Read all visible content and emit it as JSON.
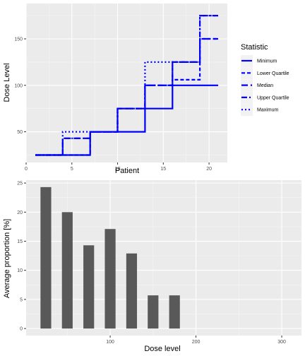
{
  "chart_data": [
    {
      "type": "line",
      "chart_style": "step",
      "xlabel": "Patient",
      "ylabel": "Dose Level",
      "xlim": [
        0,
        22
      ],
      "ylim": [
        17,
        188
      ],
      "x_ticks": [
        0,
        5,
        10,
        15,
        20
      ],
      "y_ticks": [
        50,
        100,
        150
      ],
      "grid": true,
      "line_color": "#0000ff",
      "legend": {
        "title": "Statistic",
        "position": "right"
      },
      "series": [
        {
          "name": "Minimum",
          "dash": "solid",
          "points": [
            [
              1,
              25
            ],
            [
              7,
              25
            ],
            [
              7,
              50
            ],
            [
              10,
              50
            ],
            [
              10,
              50
            ],
            [
              13,
              50
            ],
            [
              13,
              75
            ],
            [
              16,
              75
            ],
            [
              16,
              100
            ],
            [
              19,
              100
            ],
            [
              19,
              100
            ],
            [
              21,
              100
            ]
          ]
        },
        {
          "name": "Lower Quartile",
          "dash": "dashed",
          "points": [
            [
              1,
              25
            ],
            [
              7,
              25
            ],
            [
              7,
              50
            ],
            [
              10,
              50
            ],
            [
              10,
              75
            ],
            [
              13,
              75
            ],
            [
              13,
              100
            ],
            [
              16,
              100
            ],
            [
              16,
              106
            ],
            [
              19,
              106
            ],
            [
              19,
              150
            ],
            [
              21,
              150
            ]
          ]
        },
        {
          "name": "Median",
          "dash": "longdash",
          "points": [
            [
              1,
              25
            ],
            [
              4,
              25
            ],
            [
              4,
              43
            ],
            [
              7,
              43
            ],
            [
              7,
              50
            ],
            [
              10,
              50
            ],
            [
              10,
              75
            ],
            [
              13,
              75
            ],
            [
              13,
              100
            ],
            [
              16,
              100
            ],
            [
              16,
              125
            ],
            [
              19,
              125
            ],
            [
              19,
              150
            ],
            [
              21,
              150
            ]
          ]
        },
        {
          "name": "Upper Quartile",
          "dash": "dashdot",
          "points": [
            [
              1,
              25
            ],
            [
              4,
              25
            ],
            [
              4,
              43
            ],
            [
              7,
              43
            ],
            [
              7,
              50
            ],
            [
              10,
              50
            ],
            [
              10,
              75
            ],
            [
              13,
              75
            ],
            [
              13,
              100
            ],
            [
              16,
              100
            ],
            [
              16,
              125
            ],
            [
              19,
              125
            ],
            [
              19,
              175
            ],
            [
              21,
              175
            ]
          ]
        },
        {
          "name": "Maximum",
          "dash": "dotted",
          "points": [
            [
              1,
              25
            ],
            [
              4,
              25
            ],
            [
              4,
              50
            ],
            [
              7,
              50
            ],
            [
              7,
              50
            ],
            [
              10,
              50
            ],
            [
              10,
              75
            ],
            [
              13,
              75
            ],
            [
              13,
              125
            ],
            [
              16,
              125
            ],
            [
              16,
              125
            ],
            [
              19,
              125
            ],
            [
              19,
              175
            ],
            [
              21,
              175
            ]
          ]
        }
      ]
    },
    {
      "type": "bar",
      "xlabel": "Dose level",
      "ylabel": "Average proportion [%]",
      "xlim": [
        2,
        323
      ],
      "ylim": [
        -1.2,
        25.5
      ],
      "x_ticks": [
        100,
        200,
        300
      ],
      "y_ticks": [
        0,
        5,
        10,
        15,
        20,
        25
      ],
      "grid": true,
      "bar_color": "#595959",
      "bar_width": 12.5,
      "x": [
        25,
        50,
        75,
        100,
        125,
        150,
        175
      ],
      "values": [
        24.3,
        20.0,
        14.3,
        17.1,
        12.9,
        5.7,
        5.7
      ]
    }
  ]
}
